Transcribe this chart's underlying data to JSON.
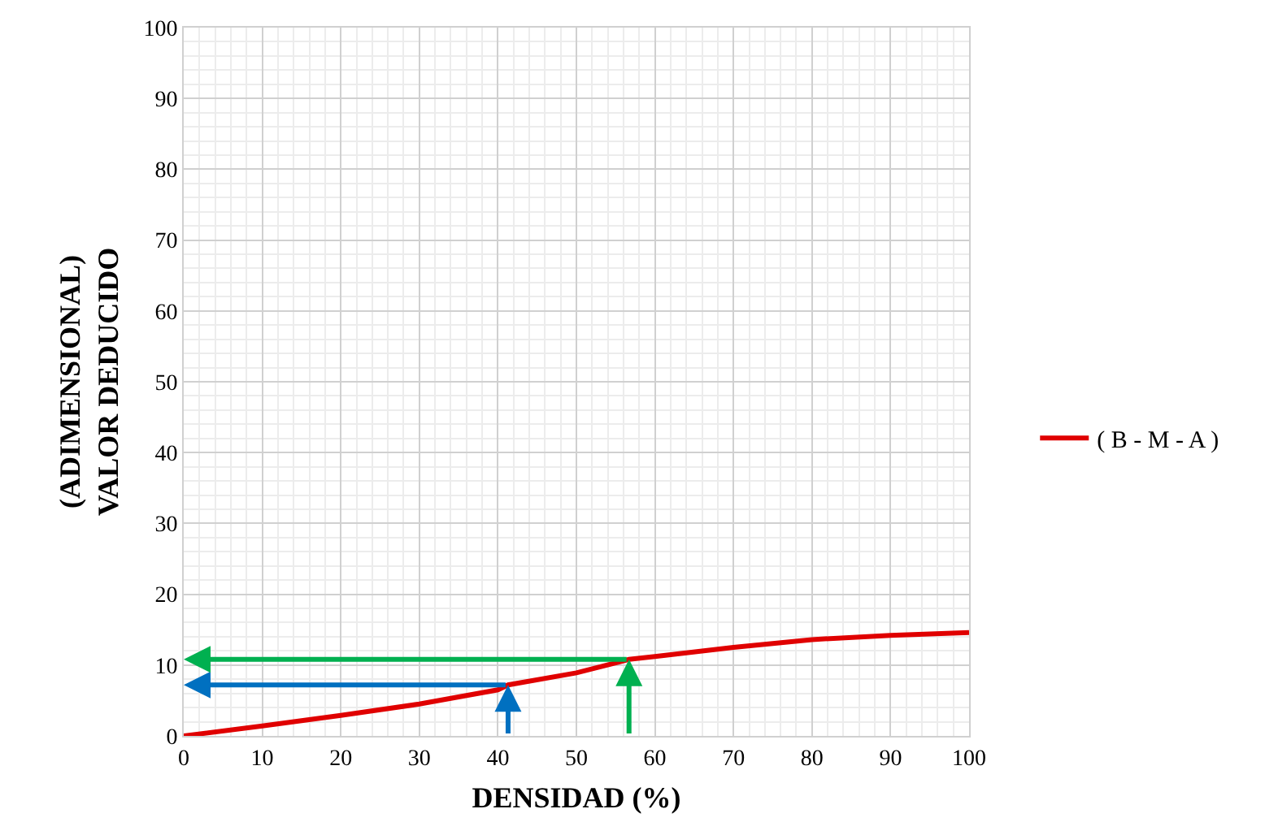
{
  "chart_data": {
    "type": "line",
    "xlabel": "DENSIDAD (%)",
    "ylabel": "(ADIMENSIONAL)\nVALOR DEDUCIDO",
    "xlim": [
      0,
      100
    ],
    "xticks": [
      0,
      10,
      20,
      30,
      40,
      50,
      60,
      70,
      80,
      90,
      100
    ],
    "ylim": [
      0,
      100
    ],
    "yticks": [
      0,
      10,
      20,
      30,
      40,
      50,
      60,
      70,
      80,
      90,
      100
    ],
    "grid": true,
    "legend": "right",
    "marker": "none",
    "line_style": "solid",
    "series": [
      {
        "name": "( B - M - A )",
        "color": "#e00000",
        "x": [
          0,
          10,
          20,
          30,
          40,
          41.3,
          50,
          56.7,
          60,
          70,
          80,
          90,
          100
        ],
        "values": [
          0,
          1.4,
          2.9,
          4.5,
          6.5,
          7.2,
          8.9,
          10.8,
          11.2,
          12.5,
          13.6,
          14.2,
          14.6
        ]
      }
    ]
  }
}
